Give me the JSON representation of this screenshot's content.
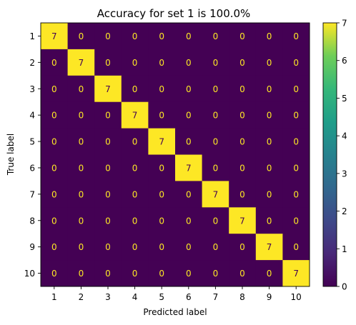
{
  "chart_data": {
    "type": "heatmap",
    "title": "Accuracy for set 1 is 100.0%",
    "xlabel": "Predicted label",
    "ylabel": "True label",
    "x_categories": [
      "1",
      "2",
      "3",
      "4",
      "5",
      "6",
      "7",
      "8",
      "9",
      "10"
    ],
    "y_categories": [
      "1",
      "2",
      "3",
      "4",
      "5",
      "6",
      "7",
      "8",
      "9",
      "10"
    ],
    "values": [
      [
        7,
        0,
        0,
        0,
        0,
        0,
        0,
        0,
        0,
        0
      ],
      [
        0,
        7,
        0,
        0,
        0,
        0,
        0,
        0,
        0,
        0
      ],
      [
        0,
        0,
        7,
        0,
        0,
        0,
        0,
        0,
        0,
        0
      ],
      [
        0,
        0,
        0,
        7,
        0,
        0,
        0,
        0,
        0,
        0
      ],
      [
        0,
        0,
        0,
        0,
        7,
        0,
        0,
        0,
        0,
        0
      ],
      [
        0,
        0,
        0,
        0,
        0,
        7,
        0,
        0,
        0,
        0
      ],
      [
        0,
        0,
        0,
        0,
        0,
        0,
        7,
        0,
        0,
        0
      ],
      [
        0,
        0,
        0,
        0,
        0,
        0,
        0,
        7,
        0,
        0
      ],
      [
        0,
        0,
        0,
        0,
        0,
        0,
        0,
        0,
        7,
        0
      ],
      [
        0,
        0,
        0,
        0,
        0,
        0,
        0,
        0,
        0,
        7
      ]
    ],
    "colormap": "viridis",
    "color_range": [
      0,
      7
    ],
    "colorbar_ticks": [
      "0",
      "1",
      "2",
      "3",
      "4",
      "5",
      "6",
      "7"
    ],
    "grid": false,
    "colors": {
      "low": "#440154",
      "high": "#fde725",
      "text_on_low": "#fde725",
      "text_on_high": "#440154"
    }
  }
}
